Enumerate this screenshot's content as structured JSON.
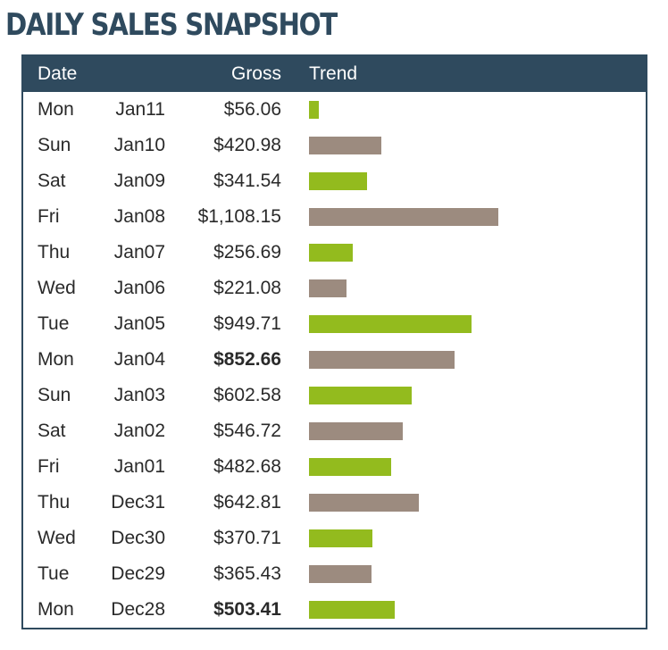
{
  "title": "DAILY SALES SNAPSHOT",
  "columns": {
    "date": "Date",
    "gross": "Gross",
    "trend": "Trend"
  },
  "colors": {
    "header_bg": "#2f4a5e",
    "bar_green": "#93bb1e",
    "bar_taupe": "#9c8b7f"
  },
  "chart_data": {
    "type": "table",
    "title": "DAILY SALES SNAPSHOT",
    "columns": [
      "Date",
      "Gross",
      "Trend"
    ],
    "rows": [
      {
        "day": "Mon",
        "date": "Jan11",
        "gross_label": "$56.06",
        "value": 56.06,
        "bold": false,
        "bar_color": "green"
      },
      {
        "day": "Sun",
        "date": "Jan10",
        "gross_label": "$420.98",
        "value": 420.98,
        "bold": false,
        "bar_color": "taupe"
      },
      {
        "day": "Sat",
        "date": "Jan09",
        "gross_label": "$341.54",
        "value": 341.54,
        "bold": false,
        "bar_color": "green"
      },
      {
        "day": "Fri",
        "date": "Jan08",
        "gross_label": "$1,108.15",
        "value": 1108.15,
        "bold": false,
        "bar_color": "taupe"
      },
      {
        "day": "Thu",
        "date": "Jan07",
        "gross_label": "$256.69",
        "value": 256.69,
        "bold": false,
        "bar_color": "green"
      },
      {
        "day": "Wed",
        "date": "Jan06",
        "gross_label": "$221.08",
        "value": 221.08,
        "bold": false,
        "bar_color": "taupe"
      },
      {
        "day": "Tue",
        "date": "Jan05",
        "gross_label": "$949.71",
        "value": 949.71,
        "bold": false,
        "bar_color": "green"
      },
      {
        "day": "Mon",
        "date": "Jan04",
        "gross_label": "$852.66",
        "value": 852.66,
        "bold": true,
        "bar_color": "taupe"
      },
      {
        "day": "Sun",
        "date": "Jan03",
        "gross_label": "$602.58",
        "value": 602.58,
        "bold": false,
        "bar_color": "green"
      },
      {
        "day": "Sat",
        "date": "Jan02",
        "gross_label": "$546.72",
        "value": 546.72,
        "bold": false,
        "bar_color": "taupe"
      },
      {
        "day": "Fri",
        "date": "Jan01",
        "gross_label": "$482.68",
        "value": 482.68,
        "bold": false,
        "bar_color": "green"
      },
      {
        "day": "Thu",
        "date": "Dec31",
        "gross_label": "$642.81",
        "value": 642.81,
        "bold": false,
        "bar_color": "taupe"
      },
      {
        "day": "Wed",
        "date": "Dec30",
        "gross_label": "$370.71",
        "value": 370.71,
        "bold": false,
        "bar_color": "green"
      },
      {
        "day": "Tue",
        "date": "Dec29",
        "gross_label": "$365.43",
        "value": 365.43,
        "bold": false,
        "bar_color": "taupe"
      },
      {
        "day": "Mon",
        "date": "Dec28",
        "gross_label": "$503.41",
        "value": 503.41,
        "bold": true,
        "bar_color": "green"
      }
    ],
    "trend_range": [
      0,
      1108.15
    ],
    "grid": false,
    "legend": "none"
  }
}
